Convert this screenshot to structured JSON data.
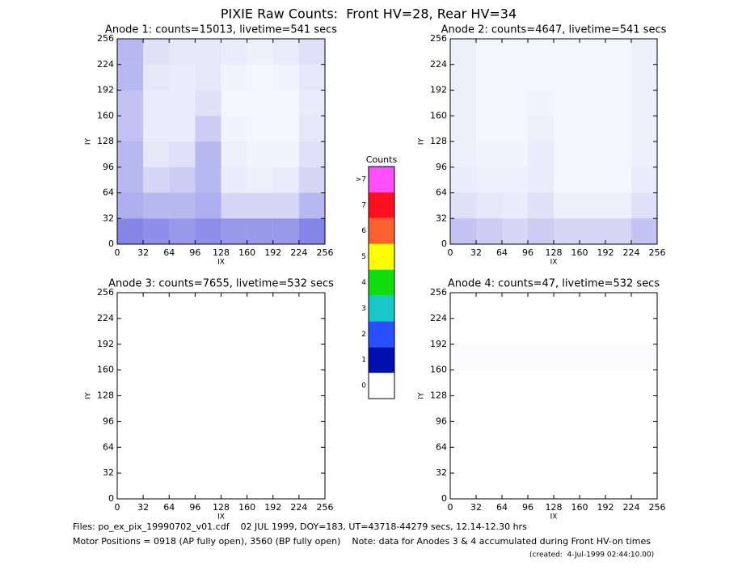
{
  "title": "PIXIE Raw Counts:  Front HV=28, Rear HV=34",
  "chart_data": [
    {
      "type": "heatmap",
      "title": "Anode 1: counts=15013, livetime=541 secs",
      "xlabel": "IX",
      "ylabel": "IY",
      "xlim": [
        0,
        256
      ],
      "ylim": [
        0,
        256
      ],
      "xticks": [
        0,
        32,
        64,
        96,
        128,
        160,
        192,
        224,
        256
      ],
      "yticks": [
        0,
        32,
        64,
        96,
        128,
        160,
        192,
        224,
        256
      ],
      "color": "#0000cc",
      "z": [
        [
          0.6,
          0.55,
          0.5,
          0.55,
          0.5,
          0.5,
          0.5,
          0.6
        ],
        [
          0.4,
          0.35,
          0.35,
          0.4,
          0.2,
          0.2,
          0.2,
          0.35
        ],
        [
          0.35,
          0.2,
          0.25,
          0.35,
          0.1,
          0.08,
          0.1,
          0.2
        ],
        [
          0.35,
          0.12,
          0.15,
          0.35,
          0.08,
          0.06,
          0.06,
          0.15
        ],
        [
          0.3,
          0.1,
          0.1,
          0.25,
          0.06,
          0.05,
          0.05,
          0.12
        ],
        [
          0.3,
          0.1,
          0.1,
          0.15,
          0.05,
          0.05,
          0.05,
          0.1
        ],
        [
          0.35,
          0.12,
          0.1,
          0.12,
          0.06,
          0.05,
          0.06,
          0.12
        ],
        [
          0.35,
          0.15,
          0.12,
          0.12,
          0.1,
          0.08,
          0.1,
          0.15
        ]
      ]
    },
    {
      "type": "heatmap",
      "title": "Anode 2: counts=4647, livetime=541 secs",
      "xlabel": "IX",
      "ylabel": "IY",
      "xlim": [
        0,
        256
      ],
      "ylim": [
        0,
        256
      ],
      "xticks": [
        0,
        32,
        64,
        96,
        128,
        160,
        192,
        224,
        256
      ],
      "yticks": [
        0,
        32,
        64,
        96,
        128,
        160,
        192,
        224,
        256
      ],
      "color": "#0000cc",
      "z": [
        [
          0.3,
          0.25,
          0.2,
          0.25,
          0.2,
          0.2,
          0.2,
          0.3
        ],
        [
          0.15,
          0.12,
          0.1,
          0.15,
          0.08,
          0.08,
          0.08,
          0.15
        ],
        [
          0.1,
          0.08,
          0.08,
          0.1,
          0.05,
          0.05,
          0.05,
          0.1
        ],
        [
          0.08,
          0.06,
          0.06,
          0.1,
          0.05,
          0.05,
          0.05,
          0.08
        ],
        [
          0.08,
          0.05,
          0.05,
          0.08,
          0.05,
          0.05,
          0.05,
          0.08
        ],
        [
          0.08,
          0.05,
          0.05,
          0.06,
          0.05,
          0.05,
          0.05,
          0.08
        ],
        [
          0.08,
          0.05,
          0.05,
          0.05,
          0.05,
          0.05,
          0.05,
          0.08
        ],
        [
          0.08,
          0.05,
          0.05,
          0.05,
          0.05,
          0.05,
          0.05,
          0.08
        ]
      ]
    },
    {
      "type": "heatmap",
      "title": "Anode 3: counts=7655, livetime=532 secs",
      "xlabel": "IX",
      "ylabel": "IY",
      "xlim": [
        0,
        256
      ],
      "ylim": [
        0,
        256
      ],
      "xticks": [
        0,
        32,
        64,
        96,
        128,
        160,
        192,
        224,
        256
      ],
      "yticks": [
        0,
        32,
        64,
        96,
        128,
        160,
        192,
        224,
        256
      ],
      "color": "#0000cc",
      "z": [
        [
          0,
          0,
          0,
          0,
          0,
          0,
          0,
          0
        ],
        [
          0,
          0,
          0,
          0,
          0,
          0,
          0,
          0
        ],
        [
          0,
          0,
          0,
          0,
          0,
          0,
          0,
          0
        ],
        [
          0,
          0,
          0,
          0,
          0,
          0,
          0,
          0
        ],
        [
          0,
          0,
          0,
          0,
          0,
          0,
          0,
          0
        ],
        [
          0,
          0,
          0,
          0,
          0,
          0,
          0,
          0
        ],
        [
          0,
          0,
          0,
          0,
          0,
          0,
          0,
          0
        ],
        [
          0,
          0,
          0,
          0,
          0,
          0,
          0,
          0
        ]
      ]
    },
    {
      "type": "heatmap",
      "title": "Anode 4: counts=47, livetime=532 secs",
      "xlabel": "IX",
      "ylabel": "IY",
      "xlim": [
        0,
        256
      ],
      "ylim": [
        0,
        256
      ],
      "xticks": [
        0,
        32,
        64,
        96,
        128,
        160,
        192,
        224,
        256
      ],
      "yticks": [
        0,
        32,
        64,
        96,
        128,
        160,
        192,
        224,
        256
      ],
      "color": "#0000cc",
      "z": [
        [
          0,
          0,
          0,
          0,
          0,
          0,
          0,
          0
        ],
        [
          0,
          0,
          0,
          0,
          0,
          0,
          0,
          0
        ],
        [
          0,
          0,
          0,
          0,
          0,
          0,
          0,
          0
        ],
        [
          0,
          0,
          0,
          0,
          0,
          0,
          0,
          0
        ],
        [
          0,
          0,
          0,
          0,
          0,
          0,
          0,
          0
        ],
        [
          0.02,
          0.02,
          0.02,
          0.02,
          0.02,
          0.02,
          0.02,
          0.02
        ],
        [
          0,
          0,
          0,
          0,
          0,
          0,
          0,
          0
        ],
        [
          0,
          0,
          0,
          0,
          0,
          0,
          0,
          0
        ]
      ]
    }
  ],
  "colorbar": {
    "title": "Counts",
    "categories": [
      "0",
      "1",
      "2",
      "3",
      "4",
      "5",
      "6",
      "7",
      ">7"
    ],
    "colors": [
      "#ffffff",
      "#0010b0",
      "#2850ff",
      "#18c8c8",
      "#10dc10",
      "#ffff00",
      "#ff6030",
      "#ff1020",
      "#ff50ff"
    ]
  },
  "footer": {
    "files": "Files: po_ex_pix_19990702_v01.cdf    02 JUL 1999, DOY=183, UT=43718-44279 secs, 12.14-12.30 hrs",
    "motor": "Motor Positions = 0918 (AP fully open), 3560 (BP fully open)    Note: data for Anodes 3 & 4 accumulated during Front HV-on times",
    "created": "(created:  4-Jul-1999 02:44:10.00)"
  }
}
